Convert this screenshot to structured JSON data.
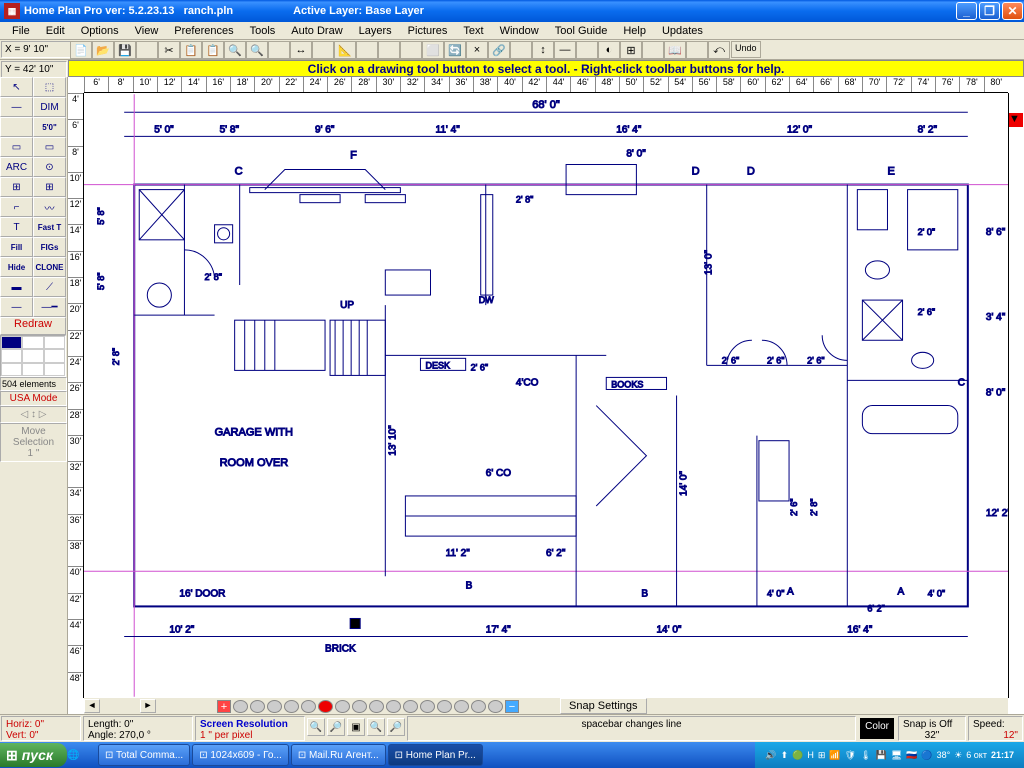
{
  "title": {
    "app": "Home Plan Pro ver:  5.2.23.13",
    "file": "ranch.pln",
    "layer": "Active Layer: Base Layer"
  },
  "menu": [
    "File",
    "Edit",
    "Options",
    "View",
    "Preferences",
    "Tools",
    "Auto Draw",
    "Layers",
    "Pictures",
    "Text",
    "Window",
    "Tool Guide",
    "Help",
    "Updates"
  ],
  "coords": {
    "x": "X = 9' 10\"",
    "y": "Y = 42' 10\""
  },
  "hint": "Click on a drawing tool button to select a tool.  -  Right-click toolbar buttons for help.",
  "toolbar_icons": [
    "📄",
    "📂",
    "💾",
    "",
    "✂",
    "📋",
    "📋",
    "🔍",
    "🔍",
    "",
    "↔",
    "",
    "📐",
    "",
    "",
    "",
    "⬜",
    "🔄",
    "×",
    "🔗",
    "",
    "↕",
    "—",
    "",
    "◐",
    "⊞",
    "",
    "📖",
    "",
    "⤺"
  ],
  "undo": "Undo",
  "lefttools": {
    "rows": [
      [
        "↖",
        "⬚"
      ],
      [
        "—",
        "DIM"
      ],
      [
        "",
        "5'0\""
      ],
      [
        "▭",
        "▭"
      ],
      [
        "ARC",
        "⊙"
      ],
      [
        "⊞",
        "⊞"
      ],
      [
        "⌐",
        "〰"
      ],
      [
        "T",
        "Fast T"
      ],
      [
        "Fill",
        "FIGs"
      ],
      [
        "Hide",
        "CLONE"
      ],
      [
        "▬",
        "⟋"
      ],
      [
        "—",
        "—━"
      ]
    ],
    "redraw": "Redraw",
    "elements": "504 elements",
    "usa": "USA Mode",
    "move": "Move\nSelection\n1 \""
  },
  "ruler_h": [
    "6'",
    "8'",
    "10'",
    "12'",
    "14'",
    "16'",
    "18'",
    "20'",
    "22'",
    "24'",
    "26'",
    "28'",
    "30'",
    "32'",
    "34'",
    "36'",
    "38'",
    "40'",
    "42'",
    "44'",
    "46'",
    "48'",
    "50'",
    "52'",
    "54'",
    "56'",
    "58'",
    "60'",
    "62'",
    "64'",
    "66'",
    "68'",
    "70'",
    "72'",
    "74'",
    "76'",
    "78'",
    "80'"
  ],
  "ruler_v": [
    "4'",
    "6'",
    "8'",
    "10'",
    "12'",
    "14'",
    "16'",
    "18'",
    "20'",
    "22'",
    "24'",
    "26'",
    "28'",
    "30'",
    "32'",
    "34'",
    "36'",
    "38'",
    "40'",
    "42'",
    "44'",
    "46'",
    "48'"
  ],
  "plan": {
    "overall": "68' 0\"",
    "dims_top": [
      "5' 0\"",
      "5' 8\"",
      "9' 6\"",
      "11' 4\"",
      "16' 4\"",
      "12' 0\"",
      "8' 2\""
    ],
    "dims_bot": [
      "10' 2\"",
      "17' 4\"",
      "14' 0\"",
      "16' 4\""
    ],
    "labels": {
      "garage": "GARAGE WITH\nROOM OVER",
      "brick": "BRICK",
      "desk": "DESK",
      "books": "BOOKS",
      "door16": "16' DOOR",
      "dw": "DW",
      "up": "UP"
    },
    "letters": [
      "A",
      "B",
      "C",
      "D",
      "E",
      "F"
    ],
    "rooms": {
      "h1": "8' 6\"",
      "h2": "3' 4\"",
      "h3": "8' 0\"",
      "h4": "12' 2\"",
      "v1": "13' 0\"",
      "v2": "13' 10\"",
      "v3": "14' 0\"",
      "co1": "4'CO",
      "co2": "6' CO",
      "d1": "2' 6\"",
      "d2": "2' 8\"",
      "d3": "2' 0\"",
      "d4": "5' 8\"",
      "d5": "4' 0\"",
      "seg1": "11' 2\"",
      "seg2": "6' 2\"",
      "small": "8' 0\""
    }
  },
  "snap": "Snap Settings",
  "status": {
    "horiz": "Horiz: 0\"",
    "vert": "Vert: 0\"",
    "length": "Length:  0\"",
    "angle": "Angle:  270,0 °",
    "res": "Screen Resolution",
    "perpx": "1 \" per pixel",
    "spacebar": "spacebar changes line",
    "color": "Color",
    "snap": "Snap is Off",
    "snapv": "32\"",
    "speed": "Speed:",
    "speedv": "12\""
  },
  "taskbar": {
    "start": "пуск",
    "items": [
      "Total Comma...",
      "1024x609 - Го...",
      "Mail.Ru Агент...",
      "Home Plan Pr..."
    ],
    "temp": "38°",
    "date": "6 окт",
    "time": "21:17"
  }
}
